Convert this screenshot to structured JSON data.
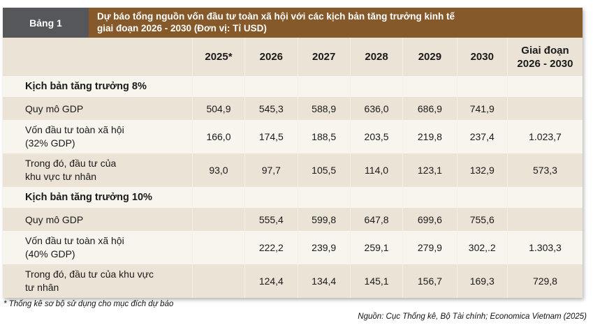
{
  "table_label": "Bảng 1",
  "title_line1": "Dự báo tổng nguồn vốn đầu tư toàn xã hội với các kịch bản tăng trưởng kinh tế",
  "title_line2": "giai đoạn 2026 - 2030 (Đơn vị: Tỉ USD)",
  "columns": [
    "2025*",
    "2026",
    "2027",
    "2028",
    "2029",
    "2030"
  ],
  "total_header": {
    "line1": "Giai đoạn",
    "line2": "2026 - 2030"
  },
  "scenarios": [
    {
      "name": "Kịch bản tăng trưởng 8%",
      "rows": [
        {
          "label1": "Quy mô GDP",
          "label2": "",
          "values": [
            "504,9",
            "545,3",
            "588,9",
            "636,0",
            "686,9",
            "741,9",
            ""
          ]
        },
        {
          "label1": "Vốn đầu tư toàn xã hội",
          "label2": "(32% GDP)",
          "values": [
            "166,0",
            "174,5",
            "188,5",
            "203,5",
            "219,8",
            "237,4",
            "1.023,7"
          ]
        },
        {
          "label1": "Trong đó, đầu tư của",
          "label2": "khu vực tư nhân",
          "values": [
            "93,0",
            "97,7",
            "105,5",
            "114,0",
            "123,1",
            "132,9",
            "573,3"
          ]
        }
      ]
    },
    {
      "name": "Kịch bản tăng trưởng 10%",
      "rows": [
        {
          "label1": "Quy mô GDP",
          "label2": "",
          "values": [
            "",
            "555,4",
            "599,8",
            "647,8",
            "699,6",
            "755,6",
            ""
          ]
        },
        {
          "label1": "Vốn đầu tư toàn xã hội",
          "label2": "(40% GDP)",
          "values": [
            "",
            "222,2",
            "239,9",
            "259,1",
            "279,9",
            "302,.2",
            "1.303,3"
          ]
        },
        {
          "label1": "Trong đó, đầu tư của khu vực",
          "label2": "tư nhân",
          "values": [
            "",
            "124,4",
            "134,4",
            "145,1",
            "156,7",
            "169,3",
            "729,8"
          ]
        }
      ]
    }
  ],
  "footnote": "* Thống kê sơ bộ sử dụng cho mục đích dự báo",
  "source": "Nguồn: Cục Thống kê, Bộ Tài chính; Economica Vietnam (2025)",
  "colors": {
    "label_bg": "#55575a",
    "title_bg": "#85592a",
    "row_dark": "#ebe3d6",
    "row_light": "#f8f4ee"
  }
}
